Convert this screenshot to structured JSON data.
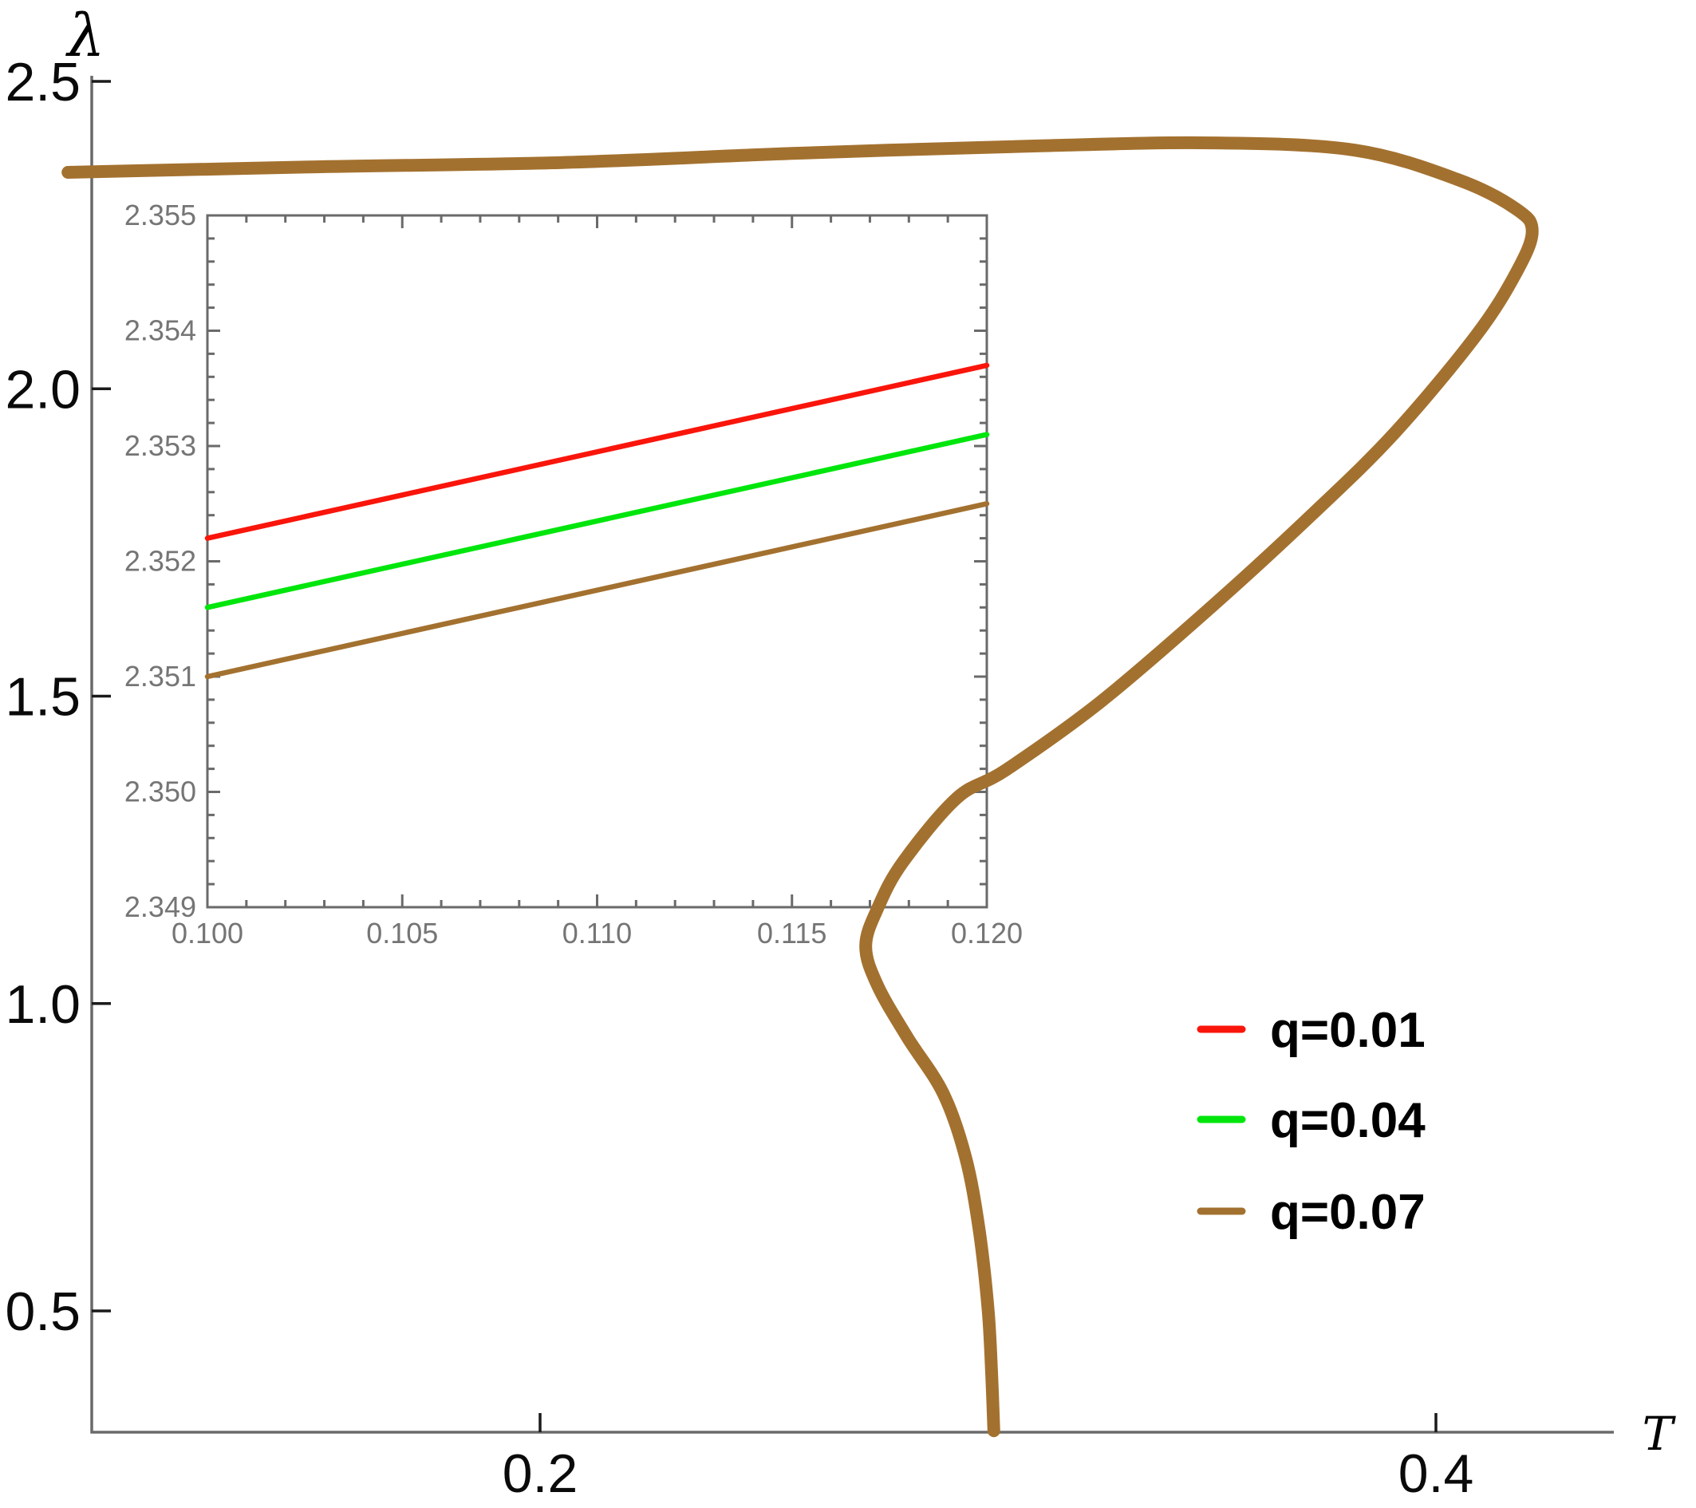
{
  "figure": {
    "background": "#ffffff",
    "frame_color": "#6a6a6a",
    "main_label_color": "#0a0a0a",
    "inset_label_color": "#757575"
  },
  "main_plot": {
    "y_axis_title": "λ",
    "x_axis_title": "T",
    "y_tick_labels": [
      "2.5",
      "2.0",
      "1.5",
      "1.0",
      "0.5"
    ],
    "x_tick_labels": [
      "0.2",
      "0.4"
    ]
  },
  "inset_plot": {
    "x_tick_labels": [
      "0.100",
      "0.105",
      "0.110",
      "0.115",
      "0.120"
    ],
    "y_tick_labels": [
      "2.349",
      "2.350",
      "2.351",
      "2.352",
      "2.353",
      "2.354",
      "2.355"
    ]
  },
  "legend": {
    "items": [
      {
        "label": "q=0.01",
        "color": "#FA150B"
      },
      {
        "label": "q=0.04",
        "color": "#00E60C"
      },
      {
        "label": "q=0.07",
        "color": "#A3712F"
      }
    ]
  },
  "chart_data": [
    {
      "type": "line",
      "title": "",
      "xlabel": "T",
      "ylabel": "λ",
      "xlim": [
        0.1,
        0.44
      ],
      "ylim": [
        0.3,
        2.51
      ],
      "x_ticks": [
        0.2,
        0.4
      ],
      "y_ticks": [
        0.5,
        1.0,
        1.5,
        2.0,
        2.5
      ],
      "grid": false,
      "legend_position": "lower right",
      "series": [
        {
          "name": "q=0.07",
          "color": "#A3712F",
          "points": [
            [
              0.0946,
              2.352
            ],
            [
              0.15,
              2.361
            ],
            [
              0.205,
              2.368
            ],
            [
              0.257,
              2.383
            ],
            [
              0.311,
              2.395
            ],
            [
              0.35,
              2.4
            ],
            [
              0.382,
              2.388
            ],
            [
              0.405,
              2.34
            ],
            [
              0.418,
              2.292
            ],
            [
              0.4215,
              2.256
            ],
            [
              0.418,
              2.19
            ],
            [
              0.409,
              2.087
            ],
            [
              0.391,
              1.93
            ],
            [
              0.373,
              1.8
            ],
            [
              0.35,
              1.646
            ],
            [
              0.325,
              1.49
            ],
            [
              0.304,
              1.38
            ],
            [
              0.293,
              1.334
            ],
            [
              0.281,
              1.23
            ],
            [
              0.2755,
              1.157
            ],
            [
              0.2727,
              1.094
            ],
            [
              0.2753,
              1.03
            ],
            [
              0.282,
              0.945
            ],
            [
              0.29,
              0.854
            ],
            [
              0.295,
              0.75
            ],
            [
              0.298,
              0.633
            ],
            [
              0.3,
              0.504
            ],
            [
              0.3008,
              0.4
            ],
            [
              0.3013,
              0.305
            ]
          ]
        }
      ]
    },
    {
      "type": "line",
      "title": "",
      "xlabel": "",
      "ylabel": "",
      "xlim": [
        0.1,
        0.12
      ],
      "ylim": [
        2.349,
        2.355
      ],
      "x_ticks": [
        0.1,
        0.105,
        0.11,
        0.115,
        0.12
      ],
      "y_ticks": [
        2.349,
        2.35,
        2.351,
        2.352,
        2.353,
        2.354,
        2.355
      ],
      "grid": false,
      "series": [
        {
          "name": "q=0.01",
          "color": "#FA150B",
          "points": [
            [
              0.1,
              2.3522
            ],
            [
              0.12,
              2.3537
            ]
          ]
        },
        {
          "name": "q=0.04",
          "color": "#00E60C",
          "points": [
            [
              0.1,
              2.3516
            ],
            [
              0.12,
              2.3531
            ]
          ]
        },
        {
          "name": "q=0.07",
          "color": "#A3712F",
          "points": [
            [
              0.1,
              2.351
            ],
            [
              0.12,
              2.3525
            ]
          ]
        }
      ]
    }
  ]
}
